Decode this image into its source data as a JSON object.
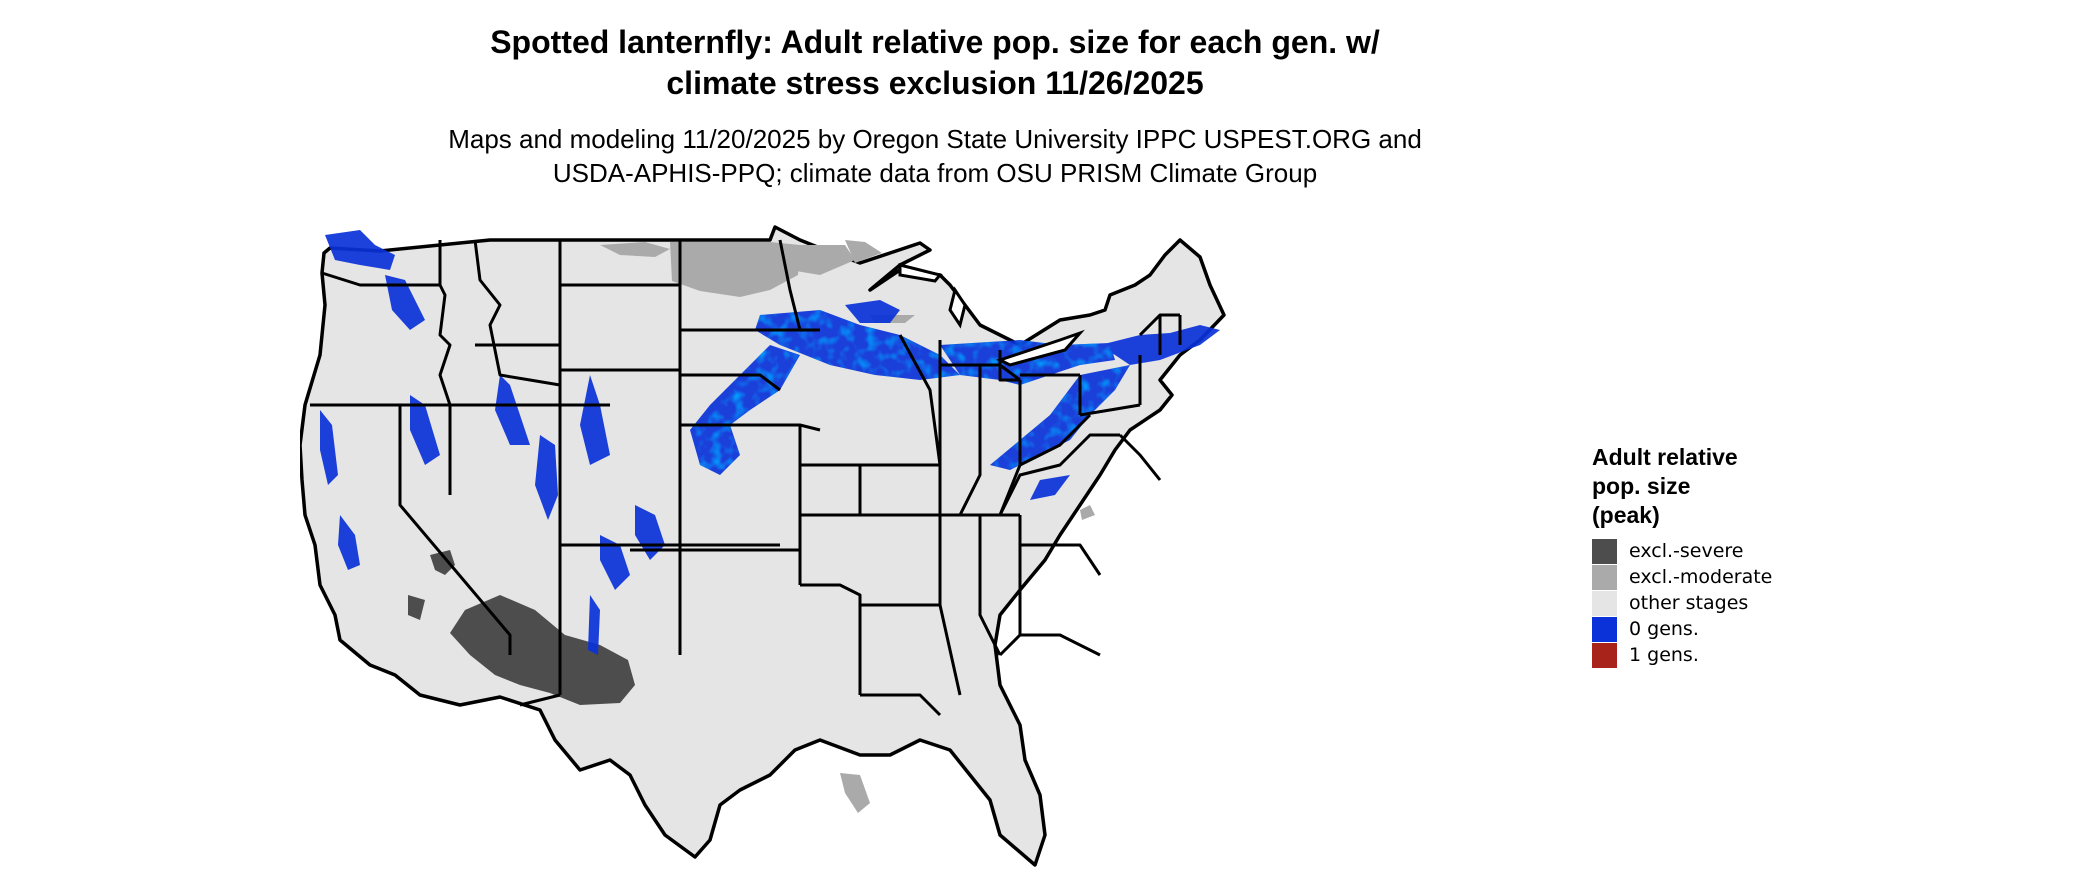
{
  "title": {
    "line1": "Spotted lanternfly: Adult relative pop. size for each gen. w/",
    "line2": "climate stress exclusion 11/26/2025"
  },
  "subtitle": {
    "line1": "Maps and modeling 11/20/2025 by Oregon State University IPPC USPEST.ORG and",
    "line2": "USDA-APHIS-PPQ; climate data from OSU PRISM Climate Group"
  },
  "legend": {
    "title_lines": [
      "Adult relative",
      "pop. size",
      "(peak)"
    ],
    "items": [
      {
        "label": "excl.-severe",
        "color": "#4d4d4d"
      },
      {
        "label": "excl.-moderate",
        "color": "#aaaaaa"
      },
      {
        "label": "other stages",
        "color": "#e5e5e5"
      },
      {
        "label": "0 gens.",
        "color": "#0a32d8"
      },
      {
        "label": "1 gens.",
        "color": "#a8241a"
      }
    ]
  },
  "map": {
    "background_color": "#e5e5e5",
    "border_color": "#000000"
  }
}
